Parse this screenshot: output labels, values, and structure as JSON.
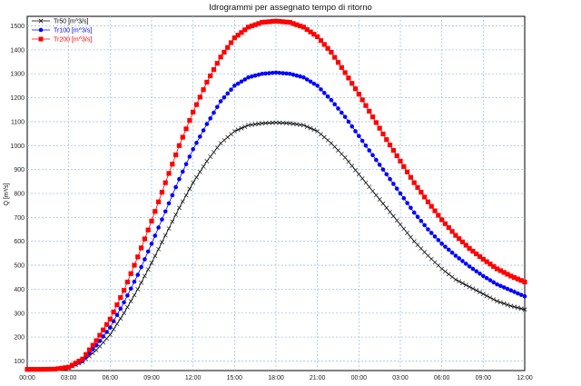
{
  "chart_data": {
    "type": "line",
    "title": "Idrogrammi per assegnato tempo di ritorno",
    "xlabel": "",
    "ylabel": "Q [m³/s]",
    "x_tick_labels": [
      "00:00",
      "03:00",
      "06:00",
      "09:00",
      "12:00",
      "15:00",
      "18:00",
      "21:00",
      "00:00",
      "03:00",
      "06:00",
      "09:00",
      "12:00"
    ],
    "x_unit": "hours_elapsed",
    "xlim": [
      0,
      36
    ],
    "ylim": [
      60,
      1540
    ],
    "y_ticks": [
      100,
      200,
      300,
      400,
      500,
      600,
      700,
      800,
      900,
      1000,
      1100,
      1200,
      1300,
      1400,
      1500
    ],
    "grid": true,
    "legend_position": "top-left",
    "x": [
      0,
      1,
      2,
      3,
      4,
      5,
      6,
      7,
      8,
      9,
      10,
      11,
      12,
      13,
      14,
      15,
      16,
      17,
      18,
      19,
      20,
      21,
      22,
      23,
      24,
      25,
      26,
      27,
      28,
      29,
      30,
      31,
      32,
      33,
      34,
      35,
      36
    ],
    "series": [
      {
        "name": "Tr50 [m^3/s]",
        "color": "#000000",
        "marker": "x",
        "values": [
          65,
          65,
          66,
          72,
          96,
          145,
          210,
          300,
          400,
          510,
          625,
          740,
          845,
          935,
          1010,
          1060,
          1085,
          1093,
          1096,
          1093,
          1085,
          1060,
          1010,
          950,
          880,
          810,
          740,
          670,
          600,
          540,
          485,
          440,
          410,
          380,
          350,
          330,
          315
        ]
      },
      {
        "name": "Tr100 [m^3/s]",
        "color": "#0000ff",
        "marker": "circle",
        "values": [
          65,
          65,
          66,
          73,
          100,
          165,
          240,
          345,
          460,
          590,
          725,
          860,
          985,
          1090,
          1185,
          1250,
          1285,
          1300,
          1305,
          1300,
          1285,
          1250,
          1190,
          1120,
          1040,
          960,
          880,
          800,
          720,
          650,
          590,
          540,
          495,
          455,
          420,
          395,
          370
        ]
      },
      {
        "name": "Tr200 [m^3/s]",
        "color": "#ff0000",
        "marker": "square",
        "values": [
          65,
          65,
          66,
          74,
          108,
          185,
          275,
          395,
          535,
          685,
          845,
          1000,
          1140,
          1265,
          1370,
          1450,
          1495,
          1515,
          1520,
          1515,
          1495,
          1455,
          1390,
          1305,
          1215,
          1120,
          1025,
          935,
          845,
          765,
          690,
          625,
          570,
          525,
          485,
          455,
          430
        ]
      }
    ]
  }
}
